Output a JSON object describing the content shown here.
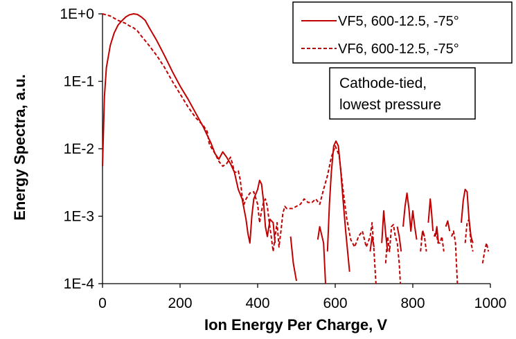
{
  "chart_data": {
    "type": "line",
    "title": "",
    "xlabel": "Ion Energy Per Charge, V",
    "ylabel": "Energy Spectra, a.u.",
    "xlim": [
      0,
      1000
    ],
    "ylim": [
      0.0001,
      1
    ],
    "yscale": "log",
    "grid": false,
    "legend_position": "top-right",
    "x_ticks": [
      0,
      200,
      400,
      600,
      800,
      1000
    ],
    "x_tick_labels": [
      "0",
      "200",
      "400",
      "600",
      "800",
      "1000"
    ],
    "y_ticks": [
      1,
      0.1,
      0.01,
      0.001,
      0.0001
    ],
    "y_tick_labels": [
      "1E+0",
      "1E-1",
      "1E-2",
      "1E-3",
      "1E-4"
    ],
    "annotation": [
      "Cathode-tied,",
      "lowest pressure"
    ],
    "series": [
      {
        "name": "VF5, 600-12.5, -75°",
        "color": "#c00000",
        "style": "solid",
        "segments": [
          [
            [
              0,
              0.0055
            ],
            [
              5,
              0.06
            ],
            [
              10,
              0.16
            ],
            [
              20,
              0.34
            ],
            [
              30,
              0.52
            ],
            [
              40,
              0.68
            ],
            [
              50,
              0.79
            ],
            [
              60,
              0.9
            ],
            [
              70,
              0.97
            ],
            [
              80,
              1.0
            ],
            [
              90,
              0.98
            ],
            [
              100,
              0.9
            ],
            [
              110,
              0.8
            ],
            [
              120,
              0.63
            ],
            [
              140,
              0.4
            ],
            [
              160,
              0.24
            ],
            [
              180,
              0.14
            ],
            [
              200,
              0.085
            ],
            [
              220,
              0.055
            ],
            [
              240,
              0.034
            ],
            [
              260,
              0.021
            ],
            [
              280,
              0.012
            ],
            [
              290,
              0.0085
            ],
            [
              300,
              0.007
            ],
            [
              310,
              0.009
            ],
            [
              320,
              0.0075
            ],
            [
              330,
              0.006
            ],
            [
              340,
              0.0045
            ],
            [
              350,
              0.0025
            ],
            [
              360,
              0.0018
            ],
            [
              370,
              0.0009
            ],
            [
              375,
              0.00055
            ],
            [
              380,
              0.0004
            ],
            [
              385,
              0.001
            ],
            [
              390,
              0.0018
            ],
            [
              400,
              0.0025
            ],
            [
              405,
              0.0034
            ],
            [
              410,
              0.003
            ],
            [
              415,
              0.0017
            ],
            [
              420,
              0.0007
            ],
            [
              425,
              0.0005
            ],
            [
              432,
              0.0009
            ],
            [
              440,
              0.0008
            ],
            [
              445,
              0.0004
            ]
          ],
          [
            [
              485,
              0.0005
            ],
            [
              492,
              0.0002
            ],
            [
              500,
              0.00011
            ]
          ],
          [
            [
              555,
              0.00045
            ],
            [
              560,
              0.0007
            ],
            [
              570,
              0.0004
            ],
            [
              575,
              0.0001
            ]
          ],
          [
            [
              580,
              0.0003
            ],
            [
              585,
              0.0015
            ],
            [
              590,
              0.0045
            ],
            [
              596,
              0.011
            ],
            [
              602,
              0.013
            ],
            [
              608,
              0.011
            ],
            [
              614,
              0.005
            ],
            [
              620,
              0.0018
            ],
            [
              627,
              0.0006
            ],
            [
              632,
              0.0003
            ],
            [
              637,
              0.00015
            ]
          ],
          [
            [
              690,
              0.0003
            ],
            [
              695,
              0.0005
            ],
            [
              700,
              0.00035
            ]
          ],
          [
            [
              720,
              0.0004
            ],
            [
              725,
              0.0012
            ],
            [
              730,
              0.00055
            ],
            [
              735,
              0.0003
            ]
          ],
          [
            [
              760,
              0.0007
            ],
            [
              765,
              0.0005
            ],
            [
              770,
              0.0003
            ]
          ],
          [
            [
              775,
              0.0007
            ],
            [
              780,
              0.0014
            ],
            [
              785,
              0.0022
            ],
            [
              790,
              0.0013
            ],
            [
              795,
              0.0006
            ],
            [
              800,
              0.0012
            ],
            [
              805,
              0.0007
            ],
            [
              810,
              0.00045
            ]
          ],
          [
            [
              822,
              0.00045
            ],
            [
              826,
              0.0006
            ],
            [
              830,
              0.0005
            ]
          ],
          [
            [
              840,
              0.0008
            ],
            [
              845,
              0.0018
            ],
            [
              848,
              0.0012
            ],
            [
              852,
              0.0006
            ]
          ],
          [
            [
              858,
              0.0005
            ],
            [
              862,
              0.0007
            ],
            [
              866,
              0.0004
            ]
          ],
          [
            [
              885,
              0.0007
            ],
            [
              890,
              0.00085
            ],
            [
              895,
              0.0006
            ]
          ],
          [
            [
              925,
              0.0008
            ],
            [
              930,
              0.0017
            ],
            [
              935,
              0.0025
            ],
            [
              940,
              0.0023
            ],
            [
              945,
              0.0009
            ],
            [
              950,
              0.0005
            ],
            [
              955,
              0.0004
            ]
          ]
        ]
      },
      {
        "name": "VF6, 600-12.5, -75°",
        "color": "#c00000",
        "style": "dashed",
        "segments": [
          [
            [
              0,
              1.0
            ],
            [
              20,
              0.93
            ],
            [
              40,
              0.8
            ],
            [
              60,
              0.72
            ],
            [
              70,
              0.66
            ],
            [
              80,
              0.62
            ],
            [
              90,
              0.56
            ],
            [
              100,
              0.47
            ],
            [
              110,
              0.4
            ],
            [
              120,
              0.34
            ],
            [
              140,
              0.24
            ],
            [
              160,
              0.16
            ],
            [
              180,
              0.1
            ],
            [
              200,
              0.065
            ],
            [
              220,
              0.042
            ],
            [
              240,
              0.029
            ],
            [
              260,
              0.022
            ],
            [
              270,
              0.018
            ],
            [
              275,
              0.012
            ],
            [
              280,
              0.0105
            ],
            [
              290,
              0.0085
            ],
            [
              300,
              0.0065
            ],
            [
              310,
              0.0055
            ],
            [
              320,
              0.006
            ],
            [
              330,
              0.0075
            ],
            [
              335,
              0.006
            ],
            [
              340,
              0.0045
            ],
            [
              345,
              0.0045
            ],
            [
              350,
              0.0047
            ],
            [
              355,
              0.0035
            ],
            [
              360,
              0.002
            ],
            [
              365,
              0.0015
            ],
            [
              370,
              0.0018
            ],
            [
              380,
              0.0022
            ],
            [
              390,
              0.0023
            ],
            [
              400,
              0.0015
            ],
            [
              405,
              0.0008
            ],
            [
              410,
              0.0012
            ],
            [
              415,
              0.0016
            ],
            [
              420,
              0.0018
            ],
            [
              425,
              0.0014
            ],
            [
              430,
              0.0008
            ],
            [
              435,
              0.0005
            ],
            [
              440,
              0.0003
            ],
            [
              445,
              0.0005
            ],
            [
              450,
              0.0008
            ],
            [
              455,
              0.00035
            ],
            [
              460,
              0.0006
            ],
            [
              465,
              0.0011
            ],
            [
              470,
              0.0014
            ],
            [
              475,
              0.0013
            ],
            [
              480,
              0.0013
            ],
            [
              490,
              0.0013
            ],
            [
              500,
              0.0014
            ],
            [
              510,
              0.0015
            ],
            [
              520,
              0.0018
            ],
            [
              530,
              0.0016
            ],
            [
              540,
              0.0016
            ],
            [
              550,
              0.0018
            ],
            [
              560,
              0.0015
            ],
            [
              570,
              0.0025
            ],
            [
              580,
              0.004
            ],
            [
              590,
              0.0075
            ],
            [
              600,
              0.011
            ],
            [
              610,
              0.008
            ],
            [
              620,
              0.0025
            ],
            [
              625,
              0.0015
            ],
            [
              630,
              0.0009
            ],
            [
              640,
              0.00045
            ],
            [
              650,
              0.00035
            ],
            [
              660,
              0.0005
            ],
            [
              670,
              0.0006
            ],
            [
              680,
              0.00035
            ],
            [
              690,
              0.0005
            ],
            [
              695,
              0.0008
            ],
            [
              700,
              0.0003
            ],
            [
              705,
              0.0001
            ]
          ],
          [
            [
              730,
              0.0002
            ],
            [
              735,
              0.0005
            ],
            [
              740,
              0.0003
            ],
            [
              745,
              0.0007
            ],
            [
              750,
              0.00075
            ],
            [
              755,
              0.0005
            ],
            [
              760,
              0.0004
            ],
            [
              765,
              0.0002
            ],
            [
              768,
              0.0001
            ]
          ],
          [
            [
              820,
              0.0003
            ],
            [
              825,
              0.0006
            ],
            [
              830,
              0.0005
            ],
            [
              835,
              0.0003
            ]
          ],
          [
            [
              855,
              0.0005
            ],
            [
              860,
              0.0006
            ],
            [
              865,
              0.0004
            ],
            [
              870,
              0.0004
            ],
            [
              875,
              0.0005
            ],
            [
              880,
              0.0003
            ]
          ],
          [
            [
              900,
              0.0005
            ],
            [
              905,
              0.0006
            ],
            [
              910,
              0.0004
            ],
            [
              915,
              0.0001
            ]
          ],
          [
            [
              935,
              0.0004
            ],
            [
              940,
              0.0008
            ],
            [
              945,
              0.0009
            ],
            [
              950,
              0.0004
            ],
            [
              955,
              0.0003
            ]
          ],
          [
            [
              980,
              0.0002
            ],
            [
              985,
              0.0003
            ],
            [
              990,
              0.0004
            ],
            [
              995,
              0.0003
            ]
          ]
        ]
      }
    ]
  }
}
